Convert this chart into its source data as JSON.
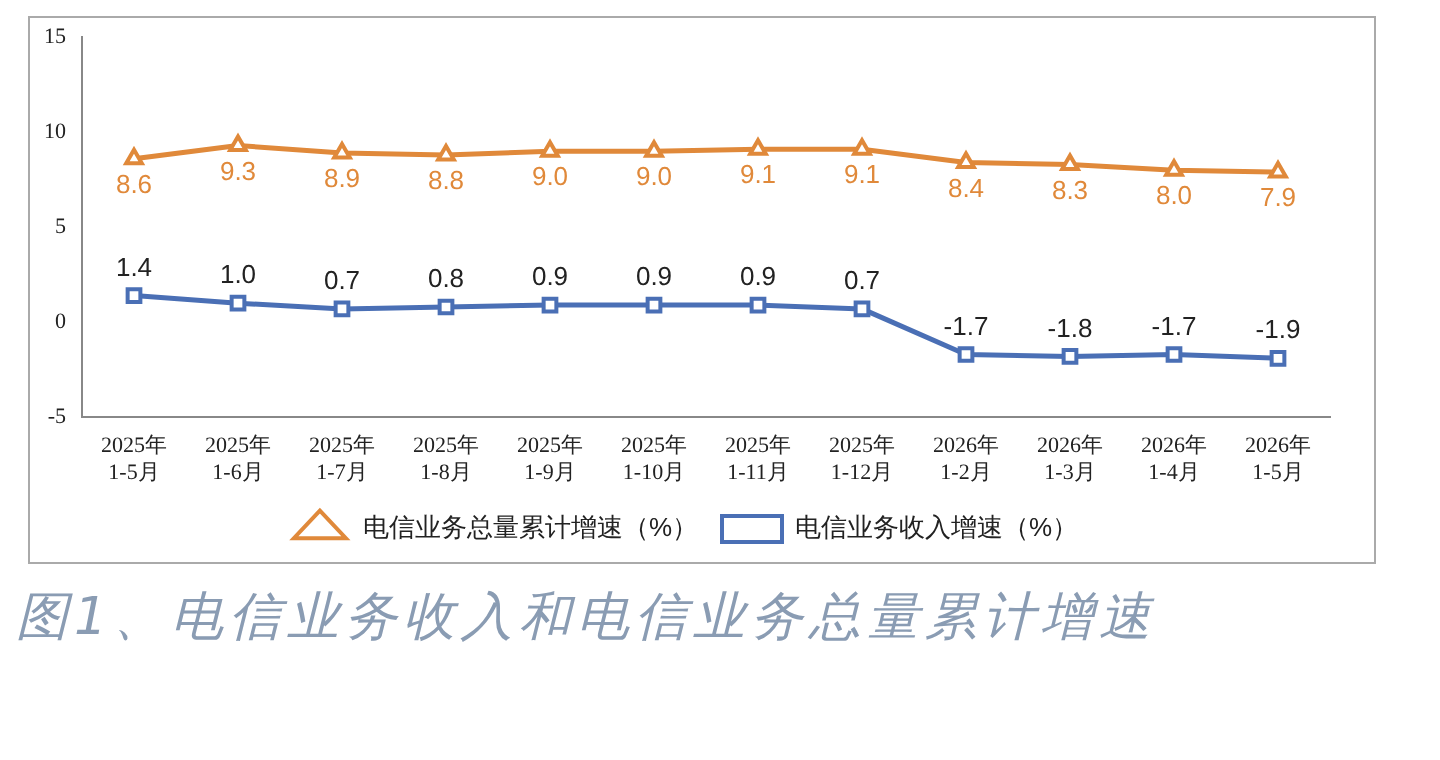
{
  "chart_data": {
    "type": "line",
    "title": "图1、电信业务收入和电信业务总量累计增速",
    "categories": [
      "2025年\n1-5月",
      "2025年\n1-6月",
      "2025年\n1-7月",
      "2025年\n1-8月",
      "2025年\n1-9月",
      "2025年\n1-10月",
      "2025年\n1-11月",
      "2025年\n1-12月",
      "2026年\n1-2月",
      "2026年\n1-3月",
      "2026年\n1-4月",
      "2026年\n1-5月"
    ],
    "series": [
      {
        "name": "电信业务总量累计增速（%）",
        "color": "#e0893a",
        "marker": "triangle",
        "values": [
          8.6,
          9.3,
          8.9,
          8.8,
          9.0,
          9.0,
          9.1,
          9.1,
          8.4,
          8.3,
          8.0,
          7.9
        ],
        "value_labels": [
          "8.6",
          "9.3",
          "8.9",
          "8.8",
          "9.0",
          "9.0",
          "9.1",
          "9.1",
          "8.4",
          "8.3",
          "8.0",
          "7.9"
        ]
      },
      {
        "name": "电信业务收入增速（%）",
        "color": "#4a6fb5",
        "marker": "square",
        "values": [
          1.4,
          1.0,
          0.7,
          0.8,
          0.9,
          0.9,
          0.9,
          0.7,
          -1.7,
          -1.8,
          -1.7,
          -1.9
        ],
        "value_labels": [
          "1.4",
          "1.0",
          "0.7",
          "0.8",
          "0.9",
          "0.9",
          "0.9",
          "0.7",
          "-1.7",
          "-1.8",
          "-1.7",
          "-1.9"
        ]
      }
    ],
    "ylim": [
      -5,
      15
    ],
    "yticks": [
      -5,
      0,
      5,
      10,
      15
    ],
    "grid": false,
    "legend": "bottom"
  }
}
